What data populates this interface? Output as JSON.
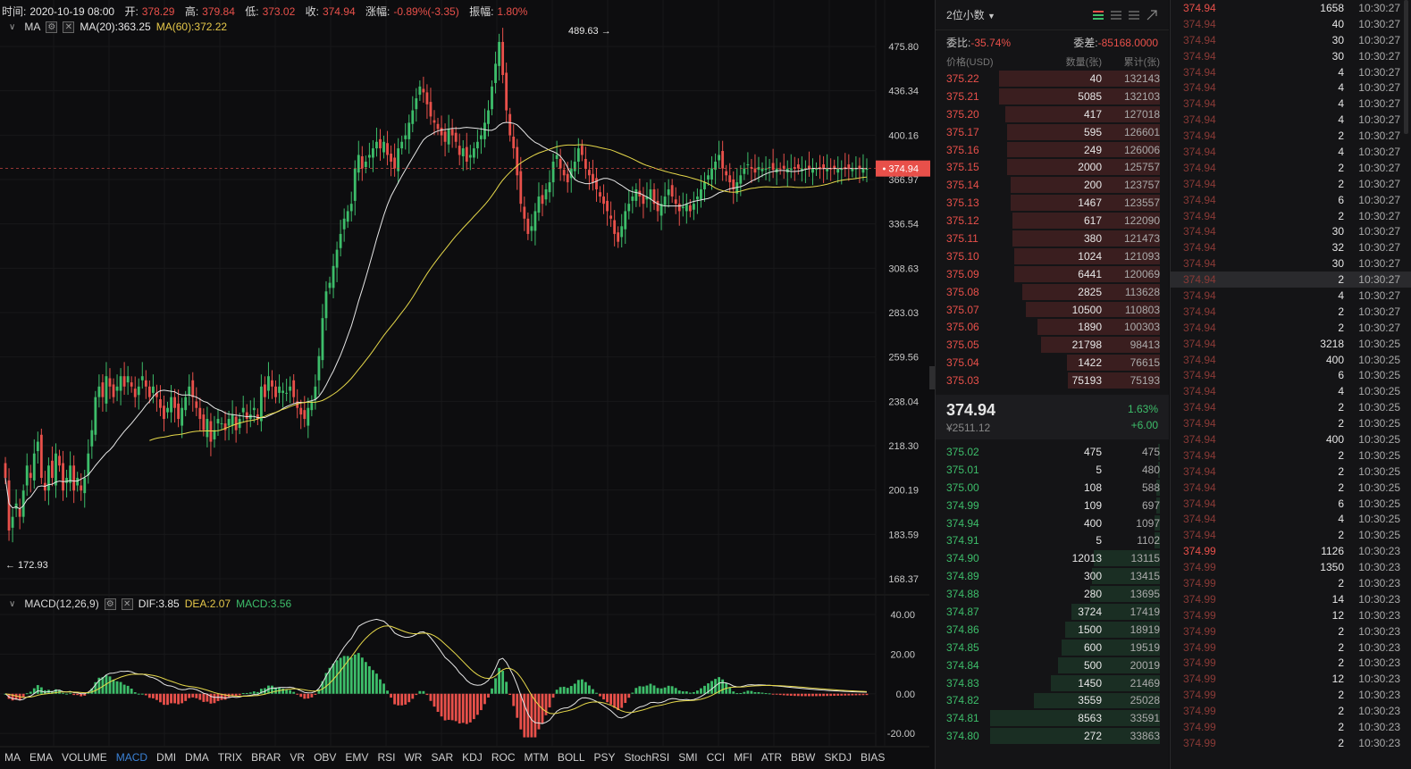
{
  "info_bar": {
    "time_label": "时间:",
    "time_value": "2020-10-19 08:00",
    "open_label": "开:",
    "open_value": "378.29",
    "high_label": "高:",
    "high_value": "379.84",
    "low_label": "低:",
    "low_value": "373.02",
    "close_label": "收:",
    "close_value": "374.94",
    "change_label": "涨幅:",
    "change_value": "-0.89%(-3.35)",
    "amplitude_label": "振幅:",
    "amplitude_value": "1.80%"
  },
  "ma_row": {
    "name": "MA",
    "ma20": "MA(20):363.25",
    "ma60": "MA(60):372.22"
  },
  "macd_row": {
    "name": "MACD(12,26,9)",
    "dif": "DIF:3.85",
    "dea": "DEA:2.07",
    "macd": "MACD:3.56"
  },
  "colors": {
    "up": "#3dbd6a",
    "down": "#e8504a",
    "ma20": "#e6e6e6",
    "ma60": "#e6d84a",
    "active_tab": "#3b82d6"
  },
  "chart_data": [
    {
      "type": "candlestick",
      "ylabels": [
        "475.80",
        "436.34",
        "400.16",
        "366.97",
        "336.54",
        "308.63",
        "283.03",
        "259.56",
        "238.04",
        "218.30",
        "200.19",
        "183.59",
        "168.37"
      ],
      "ylog": true,
      "ylim": [
        168.37,
        475.8
      ],
      "current_price": "374.94",
      "high_marker": "489.63",
      "low_marker": "172.93",
      "x": [
        0,
        1,
        2,
        3,
        4,
        5,
        6,
        7,
        8,
        9,
        10,
        11,
        12,
        13,
        14,
        15,
        16,
        17,
        18,
        19,
        20,
        21,
        22,
        23,
        24,
        25,
        26,
        27,
        28,
        29,
        30,
        31,
        32,
        33,
        34,
        35,
        36,
        37,
        38,
        39,
        40,
        41,
        42,
        43,
        44,
        45,
        46,
        47,
        48,
        49,
        50,
        51,
        52,
        53,
        54,
        55,
        56,
        57,
        58,
        59,
        60,
        61,
        62,
        63,
        64,
        65,
        66,
        67,
        68,
        69,
        70,
        71,
        72,
        73,
        74,
        75,
        76,
        77,
        78,
        79,
        80,
        81,
        82,
        83,
        84,
        85,
        86,
        87,
        88,
        89,
        90,
        91,
        92,
        93,
        94,
        95,
        96,
        97,
        98,
        99,
        100,
        101,
        102,
        103,
        104,
        105,
        106,
        107,
        108,
        109,
        110,
        111,
        112,
        113,
        114,
        115,
        116,
        117,
        118,
        119,
        120,
        121,
        122,
        123,
        124,
        125,
        126,
        127,
        128,
        129,
        130,
        131,
        132,
        133,
        134,
        135,
        136,
        137,
        138,
        139,
        140,
        141,
        142,
        143,
        144,
        145,
        146,
        147,
        148,
        149,
        150,
        151,
        152,
        153,
        154,
        155,
        156,
        157,
        158,
        159,
        160,
        161,
        162,
        163,
        164,
        165,
        166,
        167,
        168,
        169,
        170,
        171,
        172,
        173,
        174,
        175,
        176,
        177,
        178,
        179,
        180,
        181,
        182,
        183,
        184,
        185,
        186,
        187,
        188,
        189,
        190,
        191,
        192,
        193,
        194,
        195,
        196,
        197,
        198,
        199,
        200,
        201,
        202,
        203,
        204,
        205,
        206,
        207,
        208,
        209,
        210,
        211,
        212,
        213,
        214,
        215,
        216,
        217,
        218,
        219,
        220,
        221,
        222,
        223,
        224,
        225,
        226,
        227,
        228,
        229,
        230,
        231,
        232,
        233,
        234,
        235,
        236,
        237,
        238,
        239
      ],
      "close": [
        205,
        185,
        190,
        195,
        190,
        200,
        210,
        205,
        215,
        220,
        205,
        200,
        210,
        205,
        215,
        210,
        200,
        205,
        210,
        200,
        205,
        200,
        205,
        215,
        225,
        240,
        245,
        240,
        250,
        245,
        240,
        245,
        250,
        245,
        250,
        245,
        240,
        245,
        250,
        245,
        240,
        245,
        240,
        235,
        230,
        235,
        240,
        235,
        230,
        235,
        240,
        245,
        240,
        235,
        230,
        225,
        230,
        220,
        225,
        230,
        228,
        225,
        230,
        232,
        225,
        230,
        235,
        230,
        232,
        235,
        230,
        245,
        240,
        250,
        245,
        240,
        245,
        243,
        242,
        245,
        240,
        235,
        232,
        230,
        235,
        238,
        245,
        260,
        280,
        295,
        300,
        310,
        320,
        330,
        340,
        345,
        350,
        375,
        385,
        375,
        380,
        385,
        390,
        395,
        390,
        395,
        385,
        380,
        375,
        390,
        395,
        400,
        410,
        420,
        430,
        440,
        435,
        425,
        415,
        410,
        405,
        400,
        395,
        405,
        400,
        395,
        385,
        390,
        380,
        385,
        390,
        395,
        400,
        410,
        420,
        440,
        460,
        480,
        450,
        420,
        400,
        390,
        370,
        350,
        340,
        330,
        335,
        345,
        355,
        350,
        360,
        365,
        380,
        385,
        375,
        370,
        365,
        375,
        380,
        390,
        385,
        375,
        370,
        365,
        360,
        355,
        350,
        345,
        340,
        330,
        325,
        335,
        345,
        350,
        355,
        360,
        355,
        350,
        355,
        360,
        350,
        345,
        350,
        355,
        360,
        355,
        350,
        345,
        348,
        350,
        345,
        350,
        355,
        360,
        365,
        370,
        375,
        380,
        385,
        375,
        370,
        365,
        360,
        365,
        370,
        375,
        378,
        375,
        372,
        376,
        374.94,
        375,
        376,
        374,
        375,
        374.94,
        375,
        374.94,
        375,
        374.94,
        375,
        374.94,
        375,
        374.94,
        375,
        374.94,
        375,
        374.94,
        375,
        374.94,
        375,
        374.94,
        375,
        374.94,
        375,
        374.94,
        375,
        374.94,
        375,
        374.94
      ]
    },
    {
      "type": "bar",
      "ylabels": [
        "40.00",
        "20.00",
        "0.00",
        "-20.00"
      ],
      "ylim": [
        -24,
        40
      ]
    }
  ],
  "bottom_tabs": [
    "MA",
    "EMA",
    "VOLUME",
    "MACD",
    "DMI",
    "DMA",
    "TRIX",
    "BRAR",
    "VR",
    "OBV",
    "EMV",
    "RSI",
    "WR",
    "SAR",
    "KDJ",
    "ROC",
    "MTM",
    "BOLL",
    "PSY",
    "StochRSI",
    "SMI",
    "CCI",
    "MFI",
    "ATR",
    "BBW",
    "SKDJ",
    "BIAS"
  ],
  "active_tab": "MACD",
  "orderbook": {
    "precision": "2位小数",
    "ratio_label": "委比:",
    "ratio_value": "-35.74%",
    "diff_label": "委差:",
    "diff_value": "-85168.0000",
    "col_price": "价格(USD)",
    "col_qty": "数量(张)",
    "col_cum": "累计(张)",
    "asks": [
      {
        "price": "375.22",
        "qty": "40",
        "cum": "132143",
        "depth": 0.95
      },
      {
        "price": "375.21",
        "qty": "5085",
        "cum": "132103",
        "depth": 0.95
      },
      {
        "price": "375.20",
        "qty": "417",
        "cum": "127018",
        "depth": 0.91
      },
      {
        "price": "375.17",
        "qty": "595",
        "cum": "126601",
        "depth": 0.9
      },
      {
        "price": "375.16",
        "qty": "249",
        "cum": "126006",
        "depth": 0.9
      },
      {
        "price": "375.15",
        "qty": "2000",
        "cum": "125757",
        "depth": 0.9
      },
      {
        "price": "375.14",
        "qty": "200",
        "cum": "123757",
        "depth": 0.88
      },
      {
        "price": "375.13",
        "qty": "1467",
        "cum": "123557",
        "depth": 0.88
      },
      {
        "price": "375.12",
        "qty": "617",
        "cum": "122090",
        "depth": 0.87
      },
      {
        "price": "375.11",
        "qty": "380",
        "cum": "121473",
        "depth": 0.87
      },
      {
        "price": "375.10",
        "qty": "1024",
        "cum": "121093",
        "depth": 0.86
      },
      {
        "price": "375.09",
        "qty": "6441",
        "cum": "120069",
        "depth": 0.86
      },
      {
        "price": "375.08",
        "qty": "2825",
        "cum": "113628",
        "depth": 0.81
      },
      {
        "price": "375.07",
        "qty": "10500",
        "cum": "110803",
        "depth": 0.79
      },
      {
        "price": "375.06",
        "qty": "1890",
        "cum": "100303",
        "depth": 0.72
      },
      {
        "price": "375.05",
        "qty": "21798",
        "cum": "98413",
        "depth": 0.7
      },
      {
        "price": "375.04",
        "qty": "1422",
        "cum": "76615",
        "depth": 0.55
      },
      {
        "price": "375.03",
        "qty": "75193",
        "cum": "75193",
        "depth": 0.54
      }
    ],
    "mid_price": "374.94",
    "mid_cny": "¥2511.12",
    "mid_pct": "1.63%",
    "mid_change": "+6.00",
    "bids": [
      {
        "price": "375.02",
        "qty": "475",
        "cum": "475",
        "depth": 0.01
      },
      {
        "price": "375.01",
        "qty": "5",
        "cum": "480",
        "depth": 0.01
      },
      {
        "price": "375.00",
        "qty": "108",
        "cum": "588",
        "depth": 0.02
      },
      {
        "price": "374.99",
        "qty": "109",
        "cum": "697",
        "depth": 0.02
      },
      {
        "price": "374.94",
        "qty": "400",
        "cum": "1097",
        "depth": 0.03
      },
      {
        "price": "374.91",
        "qty": "5",
        "cum": "1102",
        "depth": 0.03
      },
      {
        "price": "374.90",
        "qty": "12013",
        "cum": "13115",
        "depth": 0.39
      },
      {
        "price": "374.89",
        "qty": "300",
        "cum": "13415",
        "depth": 0.4
      },
      {
        "price": "374.88",
        "qty": "280",
        "cum": "13695",
        "depth": 0.41
      },
      {
        "price": "374.87",
        "qty": "3724",
        "cum": "17419",
        "depth": 0.52
      },
      {
        "price": "374.86",
        "qty": "1500",
        "cum": "18919",
        "depth": 0.56
      },
      {
        "price": "374.85",
        "qty": "600",
        "cum": "19519",
        "depth": 0.58
      },
      {
        "price": "374.84",
        "qty": "500",
        "cum": "20019",
        "depth": 0.6
      },
      {
        "price": "374.83",
        "qty": "1450",
        "cum": "21469",
        "depth": 0.64
      },
      {
        "price": "374.82",
        "qty": "3559",
        "cum": "25028",
        "depth": 0.74
      },
      {
        "price": "374.81",
        "qty": "8563",
        "cum": "33591",
        "depth": 1.0
      },
      {
        "price": "374.80",
        "qty": "272",
        "cum": "33863",
        "depth": 1.0
      }
    ]
  },
  "trades": [
    {
      "price": "374.94",
      "qty": "1658",
      "time": "10:30:27",
      "dim": false
    },
    {
      "price": "374.94",
      "qty": "40",
      "time": "10:30:27",
      "dim": true
    },
    {
      "price": "374.94",
      "qty": "30",
      "time": "10:30:27",
      "dim": true
    },
    {
      "price": "374.94",
      "qty": "30",
      "time": "10:30:27",
      "dim": true
    },
    {
      "price": "374.94",
      "qty": "4",
      "time": "10:30:27",
      "dim": true
    },
    {
      "price": "374.94",
      "qty": "4",
      "time": "10:30:27",
      "dim": true
    },
    {
      "price": "374.94",
      "qty": "4",
      "time": "10:30:27",
      "dim": true
    },
    {
      "price": "374.94",
      "qty": "4",
      "time": "10:30:27",
      "dim": true
    },
    {
      "price": "374.94",
      "qty": "2",
      "time": "10:30:27",
      "dim": true
    },
    {
      "price": "374.94",
      "qty": "4",
      "time": "10:30:27",
      "dim": true
    },
    {
      "price": "374.94",
      "qty": "2",
      "time": "10:30:27",
      "dim": true
    },
    {
      "price": "374.94",
      "qty": "2",
      "time": "10:30:27",
      "dim": true
    },
    {
      "price": "374.94",
      "qty": "6",
      "time": "10:30:27",
      "dim": true
    },
    {
      "price": "374.94",
      "qty": "2",
      "time": "10:30:27",
      "dim": true
    },
    {
      "price": "374.94",
      "qty": "30",
      "time": "10:30:27",
      "dim": true
    },
    {
      "price": "374.94",
      "qty": "32",
      "time": "10:30:27",
      "dim": true
    },
    {
      "price": "374.94",
      "qty": "30",
      "time": "10:30:27",
      "dim": true
    },
    {
      "price": "374.94",
      "qty": "2",
      "time": "10:30:27",
      "dim": true,
      "hl": true
    },
    {
      "price": "374.94",
      "qty": "4",
      "time": "10:30:27",
      "dim": true
    },
    {
      "price": "374.94",
      "qty": "2",
      "time": "10:30:27",
      "dim": true
    },
    {
      "price": "374.94",
      "qty": "2",
      "time": "10:30:27",
      "dim": true
    },
    {
      "price": "374.94",
      "qty": "3218",
      "time": "10:30:25",
      "dim": true
    },
    {
      "price": "374.94",
      "qty": "400",
      "time": "10:30:25",
      "dim": true
    },
    {
      "price": "374.94",
      "qty": "6",
      "time": "10:30:25",
      "dim": true
    },
    {
      "price": "374.94",
      "qty": "4",
      "time": "10:30:25",
      "dim": true
    },
    {
      "price": "374.94",
      "qty": "2",
      "time": "10:30:25",
      "dim": true
    },
    {
      "price": "374.94",
      "qty": "2",
      "time": "10:30:25",
      "dim": true
    },
    {
      "price": "374.94",
      "qty": "400",
      "time": "10:30:25",
      "dim": true
    },
    {
      "price": "374.94",
      "qty": "2",
      "time": "10:30:25",
      "dim": true
    },
    {
      "price": "374.94",
      "qty": "2",
      "time": "10:30:25",
      "dim": true
    },
    {
      "price": "374.94",
      "qty": "2",
      "time": "10:30:25",
      "dim": true
    },
    {
      "price": "374.94",
      "qty": "6",
      "time": "10:30:25",
      "dim": true
    },
    {
      "price": "374.94",
      "qty": "4",
      "time": "10:30:25",
      "dim": true
    },
    {
      "price": "374.94",
      "qty": "2",
      "time": "10:30:25",
      "dim": true
    },
    {
      "price": "374.99",
      "qty": "1126",
      "time": "10:30:23",
      "dim": false
    },
    {
      "price": "374.99",
      "qty": "1350",
      "time": "10:30:23",
      "dim": true
    },
    {
      "price": "374.99",
      "qty": "2",
      "time": "10:30:23",
      "dim": true
    },
    {
      "price": "374.99",
      "qty": "14",
      "time": "10:30:23",
      "dim": true
    },
    {
      "price": "374.99",
      "qty": "12",
      "time": "10:30:23",
      "dim": true
    },
    {
      "price": "374.99",
      "qty": "2",
      "time": "10:30:23",
      "dim": true
    },
    {
      "price": "374.99",
      "qty": "2",
      "time": "10:30:23",
      "dim": true
    },
    {
      "price": "374.99",
      "qty": "2",
      "time": "10:30:23",
      "dim": true
    },
    {
      "price": "374.99",
      "qty": "12",
      "time": "10:30:23",
      "dim": true
    },
    {
      "price": "374.99",
      "qty": "2",
      "time": "10:30:23",
      "dim": true
    },
    {
      "price": "374.99",
      "qty": "2",
      "time": "10:30:23",
      "dim": true
    },
    {
      "price": "374.99",
      "qty": "2",
      "time": "10:30:23",
      "dim": true
    },
    {
      "price": "374.99",
      "qty": "2",
      "time": "10:30:23",
      "dim": true
    }
  ]
}
